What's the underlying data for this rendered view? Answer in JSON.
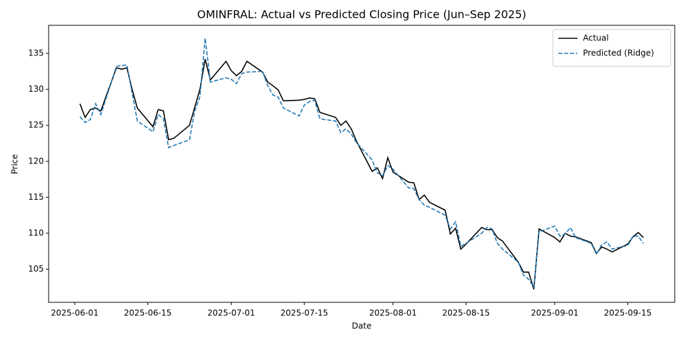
{
  "chart_data": {
    "type": "line",
    "title": "OMINFRAL: Actual vs Predicted Closing Price (Jun–Sep 2025)",
    "xlabel": "Date",
    "ylabel": "Price",
    "x": [
      "2025-06-02",
      "2025-06-03",
      "2025-06-04",
      "2025-06-05",
      "2025-06-06",
      "2025-06-09",
      "2025-06-10",
      "2025-06-11",
      "2025-06-12",
      "2025-06-13",
      "2025-06-16",
      "2025-06-17",
      "2025-06-18",
      "2025-06-19",
      "2025-06-20",
      "2025-06-23",
      "2025-06-24",
      "2025-06-25",
      "2025-06-26",
      "2025-06-27",
      "2025-06-30",
      "2025-07-01",
      "2025-07-02",
      "2025-07-03",
      "2025-07-04",
      "2025-07-07",
      "2025-07-08",
      "2025-07-09",
      "2025-07-10",
      "2025-07-11",
      "2025-07-14",
      "2025-07-15",
      "2025-07-16",
      "2025-07-17",
      "2025-07-18",
      "2025-07-21",
      "2025-07-22",
      "2025-07-23",
      "2025-07-24",
      "2025-07-25",
      "2025-07-28",
      "2025-07-29",
      "2025-07-30",
      "2025-07-31",
      "2025-08-01",
      "2025-08-04",
      "2025-08-05",
      "2025-08-06",
      "2025-08-07",
      "2025-08-08",
      "2025-08-11",
      "2025-08-12",
      "2025-08-13",
      "2025-08-14",
      "2025-08-15",
      "2025-08-18",
      "2025-08-19",
      "2025-08-20",
      "2025-08-21",
      "2025-08-22",
      "2025-08-25",
      "2025-08-26",
      "2025-08-27",
      "2025-08-28",
      "2025-08-29",
      "2025-09-01",
      "2025-09-02",
      "2025-09-03",
      "2025-09-04",
      "2025-09-05",
      "2025-09-08",
      "2025-09-09",
      "2025-09-10",
      "2025-09-11",
      "2025-09-12",
      "2025-09-15",
      "2025-09-16",
      "2025-09-17",
      "2025-09-18"
    ],
    "series": [
      {
        "name": "Actual",
        "color": "#000000",
        "linestyle": "solid",
        "values": [
          128.0,
          126.1,
          127.2,
          127.4,
          127.0,
          133.0,
          132.8,
          133.0,
          130.0,
          127.4,
          124.8,
          127.2,
          127.0,
          123.0,
          123.2,
          125.0,
          127.5,
          130.0,
          134.2,
          131.3,
          133.9,
          132.6,
          131.9,
          132.5,
          133.9,
          132.4,
          131.0,
          130.5,
          129.9,
          128.4,
          128.5,
          128.6,
          128.8,
          128.7,
          126.8,
          126.1,
          125.0,
          125.6,
          124.5,
          122.8,
          118.6,
          119.1,
          117.6,
          120.5,
          118.5,
          117.1,
          117.0,
          114.7,
          115.3,
          114.3,
          113.2,
          109.9,
          110.7,
          107.8,
          108.5,
          110.8,
          110.5,
          110.5,
          109.4,
          108.9,
          106.0,
          104.6,
          104.6,
          102.2,
          110.6,
          109.4,
          108.8,
          110.0,
          109.6,
          109.5,
          108.7,
          107.2,
          108.1,
          107.8,
          107.4,
          108.5,
          109.5,
          110.1,
          109.4
        ]
      },
      {
        "name": "Predicted (Ridge)",
        "color": "#1f77b4",
        "linestyle": "dashed",
        "values": [
          126.2,
          125.4,
          125.8,
          128.0,
          126.5,
          133.2,
          133.3,
          133.4,
          129.5,
          125.6,
          124.1,
          126.5,
          125.9,
          121.9,
          122.2,
          123.0,
          127.0,
          129.0,
          137.1,
          131.0,
          131.6,
          131.4,
          130.8,
          132.2,
          132.4,
          132.5,
          130.5,
          129.2,
          128.9,
          127.4,
          126.3,
          127.8,
          128.3,
          128.5,
          125.9,
          125.6,
          124.0,
          124.5,
          123.8,
          122.6,
          120.2,
          118.4,
          118.0,
          119.4,
          118.9,
          116.3,
          116.2,
          114.7,
          113.9,
          113.6,
          112.5,
          110.6,
          111.6,
          108.2,
          108.6,
          110.0,
          110.8,
          110.6,
          108.6,
          107.8,
          106.0,
          104.2,
          103.6,
          102.5,
          110.2,
          111.0,
          109.6,
          109.9,
          110.8,
          109.4,
          108.6,
          107.1,
          108.4,
          108.8,
          107.8,
          108.3,
          109.6,
          109.6,
          108.6
        ]
      }
    ],
    "xlim": [
      "2025-05-27",
      "2025-09-24"
    ],
    "xticks": [
      "2025-06-01",
      "2025-06-15",
      "2025-07-01",
      "2025-07-15",
      "2025-08-01",
      "2025-08-15",
      "2025-09-01",
      "2025-09-15"
    ],
    "ylim": [
      100.4,
      138.9
    ],
    "yticks": [
      105,
      110,
      115,
      120,
      125,
      130,
      135
    ],
    "grid": false,
    "legend": "upper right"
  }
}
